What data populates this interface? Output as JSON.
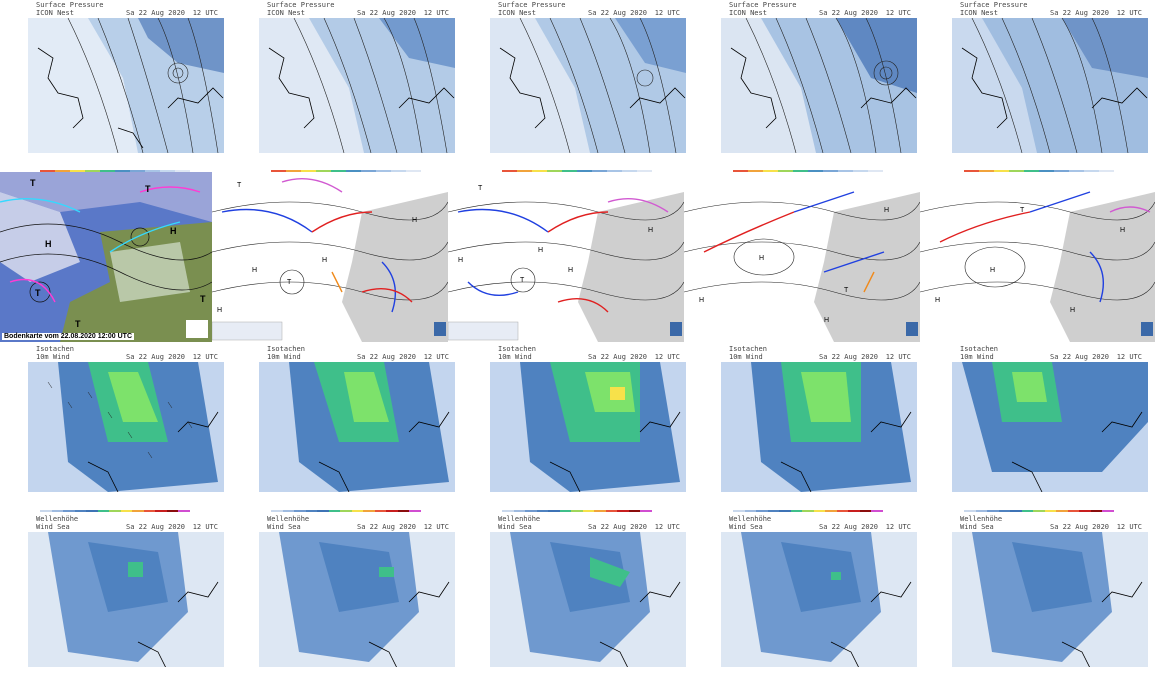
{
  "rows": [
    {
      "kind": "pressure",
      "header_line1": "Surface Pressure",
      "header_line2": "ICON Nest",
      "header_date": "Sa 22 Aug 2020",
      "header_time": "12 UTC",
      "colorbar": [
        "#e8553a",
        "#f1a33b",
        "#f7e14a",
        "#9fd65a",
        "#3fbf8a",
        "#4a90c2",
        "#7aa6d6",
        "#a8c4e6",
        "#c6d8ee",
        "#dfe7f3"
      ]
    },
    {
      "kind": "analysis",
      "first_caption": "Bodenkarte vom 22.08.2020 12:00 UTC"
    },
    {
      "kind": "wind",
      "header_line1": "Isotachen",
      "header_line2": "10m Wind",
      "header_date": "Sa 22 Aug 2020",
      "header_time": "12 UTC",
      "colorbar": [
        "#c9d8ec",
        "#9fbbe0",
        "#6f99cf",
        "#4f82c0",
        "#3d73b5",
        "#3fbf8a",
        "#9fd65a",
        "#f7e14a",
        "#f1a33b",
        "#e8553a",
        "#c81e1e",
        "#8b0d0d",
        "#d14dd1"
      ]
    },
    {
      "kind": "wave",
      "header_line1": "Wellenhöhe",
      "header_line2": "Wind Sea",
      "header_date": "Sa 22 Aug 2020",
      "header_time": "12 UTC",
      "colorbar": [
        "#c9d8ec",
        "#9fbbe0",
        "#6f99cf",
        "#4f82c0",
        "#3fbf8a",
        "#9fd65a",
        "#f7e14a",
        "#f1a33b",
        "#e8553a",
        "#c81e1e",
        "#d14dd1"
      ]
    }
  ]
}
